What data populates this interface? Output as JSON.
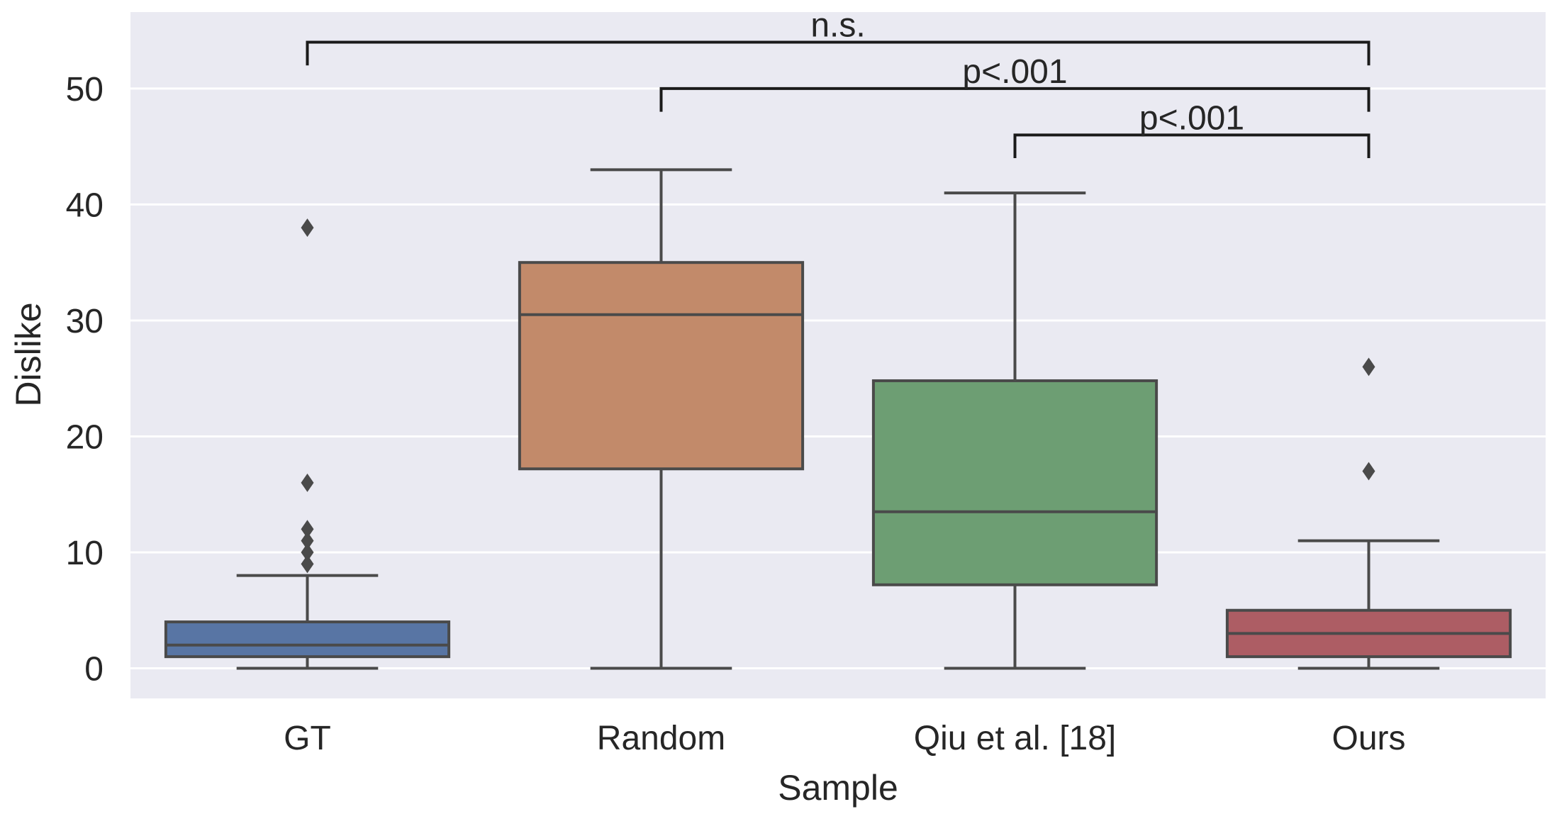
{
  "chart_data": {
    "type": "box",
    "xlabel": "Sample",
    "ylabel": "Dislike",
    "ylim": [
      -2.6,
      56.6
    ],
    "yticks": [
      0,
      10,
      20,
      30,
      40,
      50
    ],
    "ytick_labels": [
      "0",
      "10",
      "20",
      "30",
      "40",
      "50"
    ],
    "grid": true,
    "categories": [
      "GT",
      "Random",
      "Qiu et al. [18]",
      "Ours"
    ],
    "boxes": [
      {
        "category": "GT",
        "whisker_low": 0,
        "q1": 1,
        "median": 2,
        "q3": 4,
        "whisker_high": 8,
        "outliers": [
          9,
          10,
          11,
          12,
          16,
          38
        ],
        "color": "#5875a4"
      },
      {
        "category": "Random",
        "whisker_low": 0,
        "q1": 17.2,
        "median": 30.5,
        "q3": 35,
        "whisker_high": 43,
        "outliers": [],
        "color": "#c28a6a"
      },
      {
        "category": "Qiu et al. [18]",
        "whisker_low": 0,
        "q1": 7.2,
        "median": 13.5,
        "q3": 24.8,
        "whisker_high": 41,
        "outliers": [],
        "color": "#6d9e73"
      },
      {
        "category": "Ours",
        "whisker_low": 0,
        "q1": 1,
        "median": 3,
        "q3": 5,
        "whisker_high": 11,
        "outliers": [
          17,
          26
        ],
        "color": "#ad5d64"
      }
    ],
    "annotations": [
      {
        "text": "n.s.",
        "from": "GT",
        "to": "Ours",
        "y": 54,
        "tip": 52
      },
      {
        "text": "p<.001",
        "from": "Random",
        "to": "Ours",
        "y": 50,
        "tip": 48
      },
      {
        "text": "p<.001",
        "from": "Qiu et al. [18]",
        "to": "Ours",
        "y": 46,
        "tip": 44
      }
    ],
    "colors": {
      "background": "#eaeaf2",
      "grid": "#ffffff",
      "line": "#4a4a4a"
    }
  }
}
